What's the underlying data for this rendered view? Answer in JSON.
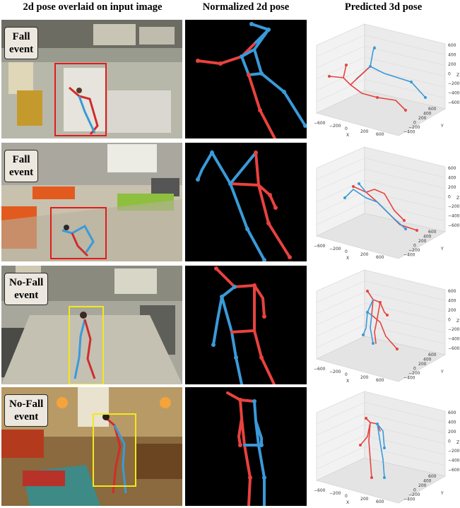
{
  "headers": {
    "col1": "2d pose overlaid on input image",
    "col2": "Normalized 2d pose",
    "col3": "Predicted 3d pose"
  },
  "colors": {
    "left_limb": "#e8423f",
    "right_limb": "#3a9ad9",
    "fall_box": "#e31a1c",
    "nofall_box": "#f4e71b"
  },
  "rows": [
    {
      "label_line1": "Fall",
      "label_line2": "event",
      "event": "fall"
    },
    {
      "label_line1": "Fall",
      "label_line2": "event",
      "event": "fall"
    },
    {
      "label_line1": "No-Fall",
      "label_line2": "event",
      "event": "no-fall"
    },
    {
      "label_line1": "No-Fall",
      "label_line2": "event",
      "event": "no-fall"
    }
  ],
  "axes3d": {
    "z_ticks": [
      "600",
      "400",
      "200",
      "0",
      "−200",
      "−400",
      "−600"
    ],
    "x_ticks": [
      "−600",
      "−200",
      "0",
      "200",
      "600"
    ],
    "y_ticks": [
      "600",
      "400",
      "200",
      "0",
      "−200",
      "−400"
    ],
    "x_label": "X",
    "y_label": "Y",
    "z_label": "Z"
  }
}
